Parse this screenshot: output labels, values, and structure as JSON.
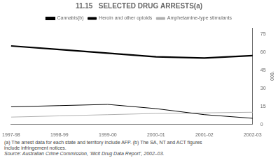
{
  "chart_data": {
    "type": "line",
    "title": "11.15   SELECTED DRUG ARRESTS(a)",
    "categories": [
      "1997-98",
      "1998-99",
      "1999-00",
      "2000-01",
      "2001-02",
      "2002-03"
    ],
    "series": [
      {
        "name": "Cannabis(b)",
        "color": "#000000",
        "values": [
          65,
          62,
          59,
          56,
          55,
          57
        ]
      },
      {
        "name": "Heroin and other opioids",
        "color": "#000000",
        "values": [
          14.5,
          15.5,
          16.5,
          13,
          8,
          5
        ]
      },
      {
        "name": "Amphetamine-type stimulants",
        "color": "#b0b0b0",
        "values": [
          6,
          7,
          8,
          9,
          9.5,
          10
        ]
      }
    ],
    "ylim": [
      0,
      80
    ],
    "yticks": [
      0,
      15,
      30,
      45,
      60,
      75
    ],
    "ylabel": "'000",
    "annotations": [
      "(a) The arrest data for each state and territory include AFP. (b) The SA, NT and ACT figures",
      "include infringement notices.",
      "Source: Australian Crime Commission, ‘Illicit Drug Data Report’, 2002–03."
    ],
    "grid": false,
    "legend": "top"
  }
}
